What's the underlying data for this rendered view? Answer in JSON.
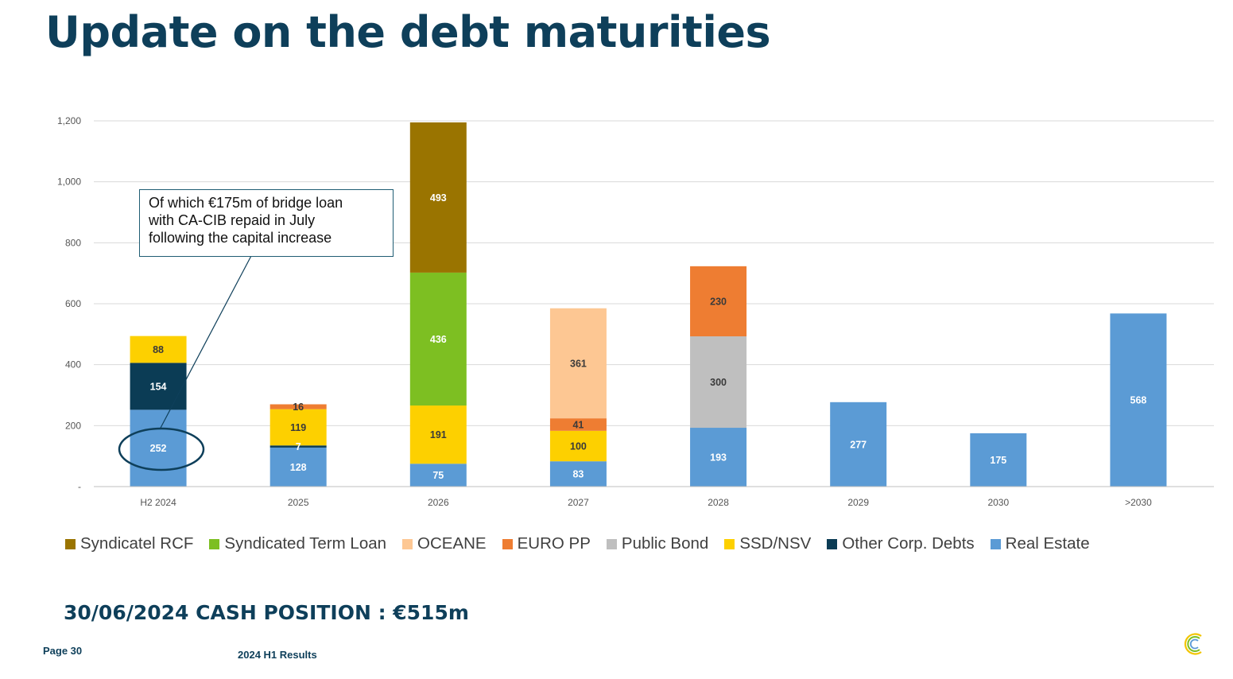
{
  "title": "Update on the debt maturities",
  "annotation": {
    "lines": [
      "Of which €175m of bridge loan",
      "with CA-CIB repaid in July",
      "following the capital increase"
    ]
  },
  "cash_position": "30/06/2024 CASH POSITION : €515m",
  "footer": {
    "page": "Page 30",
    "center": "2024 H1 Results"
  },
  "colors": {
    "Syndicatel RCF": "#9a7400",
    "Syndicated Term Loan": "#7dbf22",
    "OCEANE": "#fdc793",
    "EURO PP": "#ee7d32",
    "Public Bond": "#bfbfbf",
    "SSD/NSV": "#fdd000",
    "Other Corp. Debts": "#0b3c55",
    "Real Estate": "#5b9bd5"
  },
  "chart_data": {
    "type": "bar",
    "stacked": true,
    "categories": [
      "H2 2024",
      "2025",
      "2026",
      "2027",
      "2028",
      "2029",
      "2030",
      ">2030"
    ],
    "ylim": [
      0,
      1200
    ],
    "yticks": [
      0,
      200,
      400,
      600,
      800,
      1000,
      1200
    ],
    "ytick_labels": [
      "-",
      "200",
      "400",
      "600",
      "800",
      "1,000",
      "1,200"
    ],
    "grid": true,
    "legend": [
      "Syndicatel RCF",
      "Syndicated Term Loan",
      "OCEANE",
      "EURO PP",
      "Public Bond",
      "SSD/NSV",
      "Other Corp. Debts",
      "Real Estate"
    ],
    "legend_position": "bottom",
    "series": [
      {
        "name": "Real Estate",
        "values": [
          252,
          128,
          75,
          83,
          193,
          277,
          175,
          568
        ]
      },
      {
        "name": "Other Corp. Debts",
        "values": [
          154,
          7,
          null,
          null,
          null,
          null,
          null,
          null
        ]
      },
      {
        "name": "SSD/NSV",
        "values": [
          88,
          119,
          191,
          100,
          null,
          null,
          null,
          null
        ]
      },
      {
        "name": "Public Bond",
        "values": [
          null,
          null,
          null,
          null,
          300,
          null,
          null,
          null
        ]
      },
      {
        "name": "EURO PP",
        "values": [
          null,
          16,
          null,
          41,
          230,
          null,
          null,
          null
        ]
      },
      {
        "name": "OCEANE",
        "values": [
          null,
          null,
          null,
          361,
          null,
          null,
          null,
          null
        ]
      },
      {
        "name": "Syndicated Term Loan",
        "values": [
          null,
          null,
          436,
          null,
          null,
          null,
          null,
          null
        ]
      },
      {
        "name": "Syndicatel RCF",
        "values": [
          null,
          null,
          493,
          null,
          null,
          null,
          null,
          null
        ]
      }
    ]
  }
}
